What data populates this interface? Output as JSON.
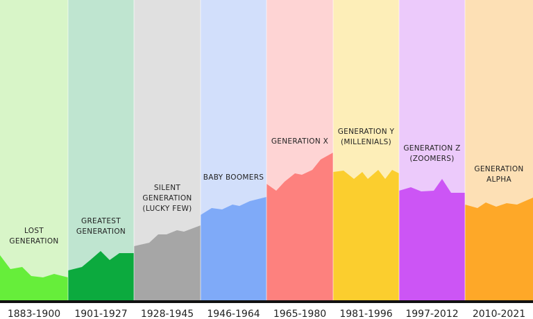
{
  "columns": [
    {
      "name_lines": [
        "LOST",
        "GENERATION"
      ],
      "years": "1883-1900"
    },
    {
      "name_lines": [
        "GREATEST",
        "GENERATION"
      ],
      "years": "1901-1927"
    },
    {
      "name_lines": [
        "SILENT",
        "GENERATION",
        "(LUCKY FEW)"
      ],
      "years": "1928-1945"
    },
    {
      "name_lines": [
        "BABY BOOMERS"
      ],
      "years": "1946-1964"
    },
    {
      "name_lines": [
        "GENERATION X"
      ],
      "years": "1965-1980"
    },
    {
      "name_lines": [
        "GENERATION Y",
        "(MILLENIALS)"
      ],
      "years": "1981-1996"
    },
    {
      "name_lines": [
        "GENERATION Z",
        "(ZOOMERS)"
      ],
      "years": "1997-2012"
    },
    {
      "name_lines": [
        "GENERATION",
        "ALPHA"
      ],
      "years": "2010-2021"
    }
  ]
}
